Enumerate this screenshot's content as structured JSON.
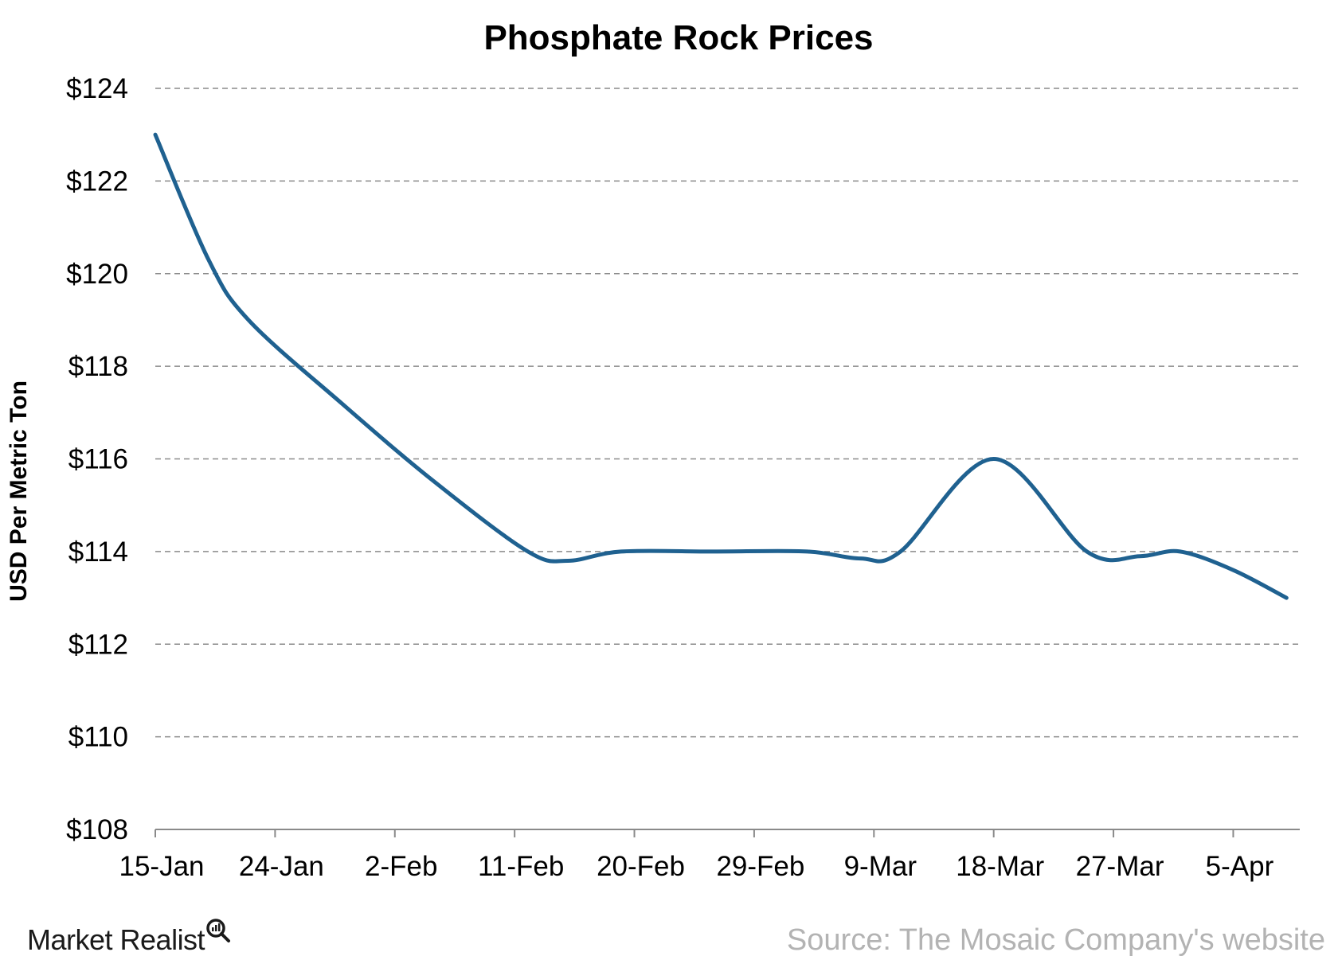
{
  "chart_data": {
    "type": "line",
    "title": "Phosphate Rock Prices",
    "xlabel": "",
    "ylabel": "USD Per Metric Ton",
    "ylim": [
      108,
      124
    ],
    "yticks": [
      "$108",
      "$110",
      "$112",
      "$114",
      "$116",
      "$118",
      "$120",
      "$122",
      "$124"
    ],
    "ytick_values": [
      108,
      110,
      112,
      114,
      116,
      118,
      120,
      122,
      124
    ],
    "xticks": [
      "15-Jan",
      "24-Jan",
      "2-Feb",
      "11-Feb",
      "20-Feb",
      "29-Feb",
      "9-Mar",
      "18-Mar",
      "27-Mar",
      "5-Apr"
    ],
    "xtick_values": [
      "2016-01-15",
      "2016-01-24",
      "2016-02-02",
      "2016-02-11",
      "2016-02-20",
      "2016-02-29",
      "2016-03-09",
      "2016-03-18",
      "2016-03-27",
      "2016-04-05"
    ],
    "xlim": [
      "2016-01-15",
      "2016-04-10"
    ],
    "grid": true,
    "series": [
      {
        "name": "",
        "color": "#1f6190",
        "x": [
          "2016-01-15",
          "2016-01-19",
          "2016-01-22",
          "2016-01-29",
          "2016-02-05",
          "2016-02-12",
          "2016-02-15",
          "2016-02-19",
          "2016-02-26",
          "2016-03-04",
          "2016-03-08",
          "2016-03-11",
          "2016-03-18",
          "2016-03-25",
          "2016-03-29",
          "2016-04-01",
          "2016-04-05",
          "2016-04-09"
        ],
        "y": [
          123.0,
          120.3,
          119.0,
          117.2,
          115.5,
          114.0,
          113.8,
          114.0,
          114.0,
          114.0,
          113.85,
          114.0,
          116.0,
          114.0,
          113.9,
          114.0,
          113.6,
          113.0
        ]
      }
    ]
  },
  "branding": {
    "name": "Market Realist"
  },
  "source": {
    "text": "Source: The Mosaic Company's website"
  }
}
